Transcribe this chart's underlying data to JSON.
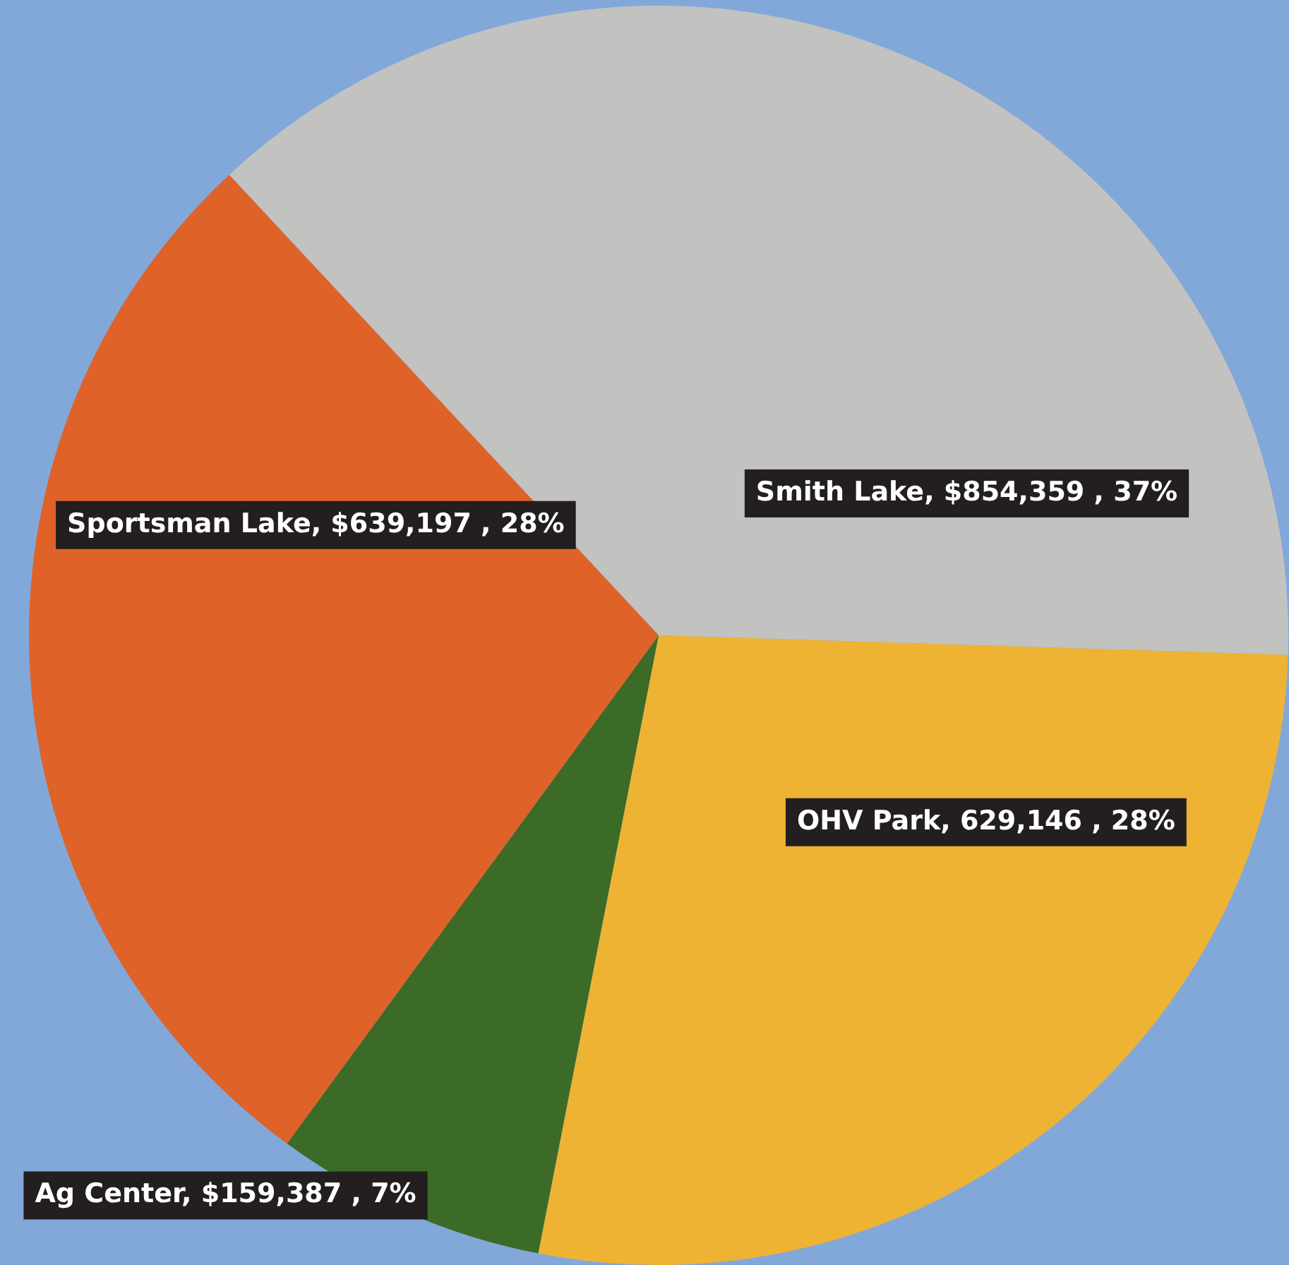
{
  "chart_data": {
    "type": "pie",
    "categories": [
      "Smith Lake",
      "OHV Park",
      "Ag Center",
      "Sportsman Lake"
    ],
    "values": [
      854359,
      629146,
      159387,
      639197
    ],
    "colors": [
      "#c2c2c0",
      "#efb334",
      "#3b6b26",
      "#df6228"
    ],
    "value_labels": [
      "$854,359 , 37%",
      "629,146 , 28%",
      "$159,387 , 7%",
      "$639,197 , 28%"
    ],
    "legend": false
  }
}
